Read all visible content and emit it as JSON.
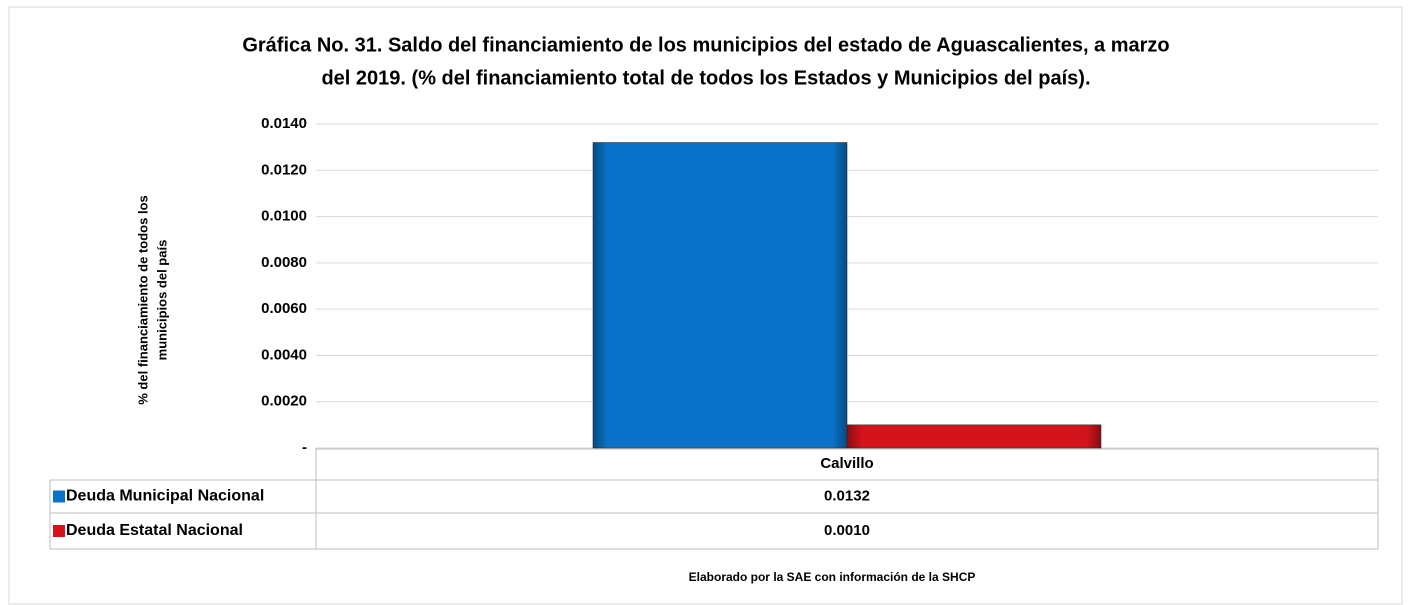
{
  "chart_data": {
    "type": "bar",
    "title": "Gráfica No. 31. Saldo del financiamiento de los municipios del estado de Aguascalientes, a marzo",
    "subtitle": "del 2019. (% del financiamiento total de todos los Estados y Municipios del país).",
    "y_label": [
      "% del financiamiento  de todos los",
      "municipios del país"
    ],
    "categories": [
      "Calvillo"
    ],
    "series": [
      {
        "name": "Deuda Municipal Nacional",
        "color": "#0a73c9",
        "values": [
          0.0132
        ],
        "value_labels": [
          "0.0132"
        ]
      },
      {
        "name": "Deuda Estatal Nacional",
        "color": "#d4141b",
        "values": [
          0.001
        ],
        "value_labels": [
          "0.0010"
        ]
      }
    ],
    "ylim": [
      0,
      0.014
    ],
    "yticks": [
      {
        "value": 0,
        "label": "-"
      },
      {
        "value": 0.002,
        "label": "0.0020"
      },
      {
        "value": 0.004,
        "label": "0.0040"
      },
      {
        "value": 0.006,
        "label": "0.0060"
      },
      {
        "value": 0.008,
        "label": "0.0080"
      },
      {
        "value": 0.01,
        "label": "0.0100"
      },
      {
        "value": 0.012,
        "label": "0.0120"
      },
      {
        "value": 0.014,
        "label": "0.0140"
      }
    ],
    "grid": true,
    "source": "Elaborado por la SAE con información de  la SHCP"
  }
}
